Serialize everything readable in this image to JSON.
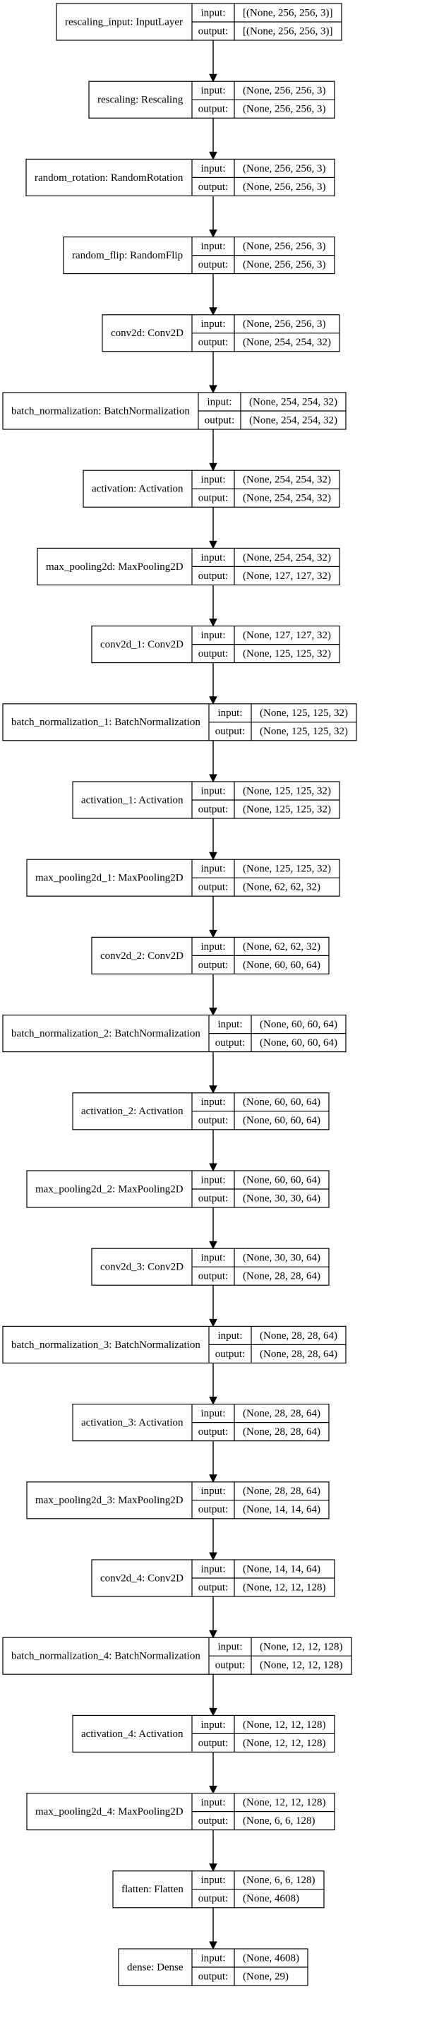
{
  "nodes": [
    {
      "label": "rescaling_input: InputLayer",
      "input": "[(None, 256, 256, 3)]",
      "output": "[(None, 256, 256, 3)]"
    },
    {
      "label": "rescaling: Rescaling",
      "input": "(None, 256, 256, 3)",
      "output": "(None, 256, 256, 3)"
    },
    {
      "label": "random_rotation: RandomRotation",
      "input": "(None, 256, 256, 3)",
      "output": "(None, 256, 256, 3)"
    },
    {
      "label": "random_flip: RandomFlip",
      "input": "(None, 256, 256, 3)",
      "output": "(None, 256, 256, 3)"
    },
    {
      "label": "conv2d: Conv2D",
      "input": "(None, 256, 256, 3)",
      "output": "(None, 254, 254, 32)"
    },
    {
      "label": "batch_normalization: BatchNormalization",
      "input": "(None, 254, 254, 32)",
      "output": "(None, 254, 254, 32)"
    },
    {
      "label": "activation: Activation",
      "input": "(None, 254, 254, 32)",
      "output": "(None, 254, 254, 32)"
    },
    {
      "label": "max_pooling2d: MaxPooling2D",
      "input": "(None, 254, 254, 32)",
      "output": "(None, 127, 127, 32)"
    },
    {
      "label": "conv2d_1: Conv2D",
      "input": "(None, 127, 127, 32)",
      "output": "(None, 125, 125, 32)"
    },
    {
      "label": "batch_normalization_1: BatchNormalization",
      "input": "(None, 125, 125, 32)",
      "output": "(None, 125, 125, 32)"
    },
    {
      "label": "activation_1: Activation",
      "input": "(None, 125, 125, 32)",
      "output": "(None, 125, 125, 32)"
    },
    {
      "label": "max_pooling2d_1: MaxPooling2D",
      "input": "(None, 125, 125, 32)",
      "output": "(None, 62, 62, 32)"
    },
    {
      "label": "conv2d_2: Conv2D",
      "input": "(None, 62, 62, 32)",
      "output": "(None, 60, 60, 64)"
    },
    {
      "label": "batch_normalization_2: BatchNormalization",
      "input": "(None, 60, 60, 64)",
      "output": "(None, 60, 60, 64)"
    },
    {
      "label": "activation_2: Activation",
      "input": "(None, 60, 60, 64)",
      "output": "(None, 60, 60, 64)"
    },
    {
      "label": "max_pooling2d_2: MaxPooling2D",
      "input": "(None, 60, 60, 64)",
      "output": "(None, 30, 30, 64)"
    },
    {
      "label": "conv2d_3: Conv2D",
      "input": "(None, 30, 30, 64)",
      "output": "(None, 28, 28, 64)"
    },
    {
      "label": "batch_normalization_3: BatchNormalization",
      "input": "(None, 28, 28, 64)",
      "output": "(None, 28, 28, 64)"
    },
    {
      "label": "activation_3: Activation",
      "input": "(None, 28, 28, 64)",
      "output": "(None, 28, 28, 64)"
    },
    {
      "label": "max_pooling2d_3: MaxPooling2D",
      "input": "(None, 28, 28, 64)",
      "output": "(None, 14, 14, 64)"
    },
    {
      "label": "conv2d_4: Conv2D",
      "input": "(None, 14, 14, 64)",
      "output": "(None, 12, 12, 128)"
    },
    {
      "label": "batch_normalization_4: BatchNormalization",
      "input": "(None, 12, 12, 128)",
      "output": "(None, 12, 12, 128)"
    },
    {
      "label": "activation_4: Activation",
      "input": "(None, 12, 12, 128)",
      "output": "(None, 12, 12, 128)"
    },
    {
      "label": "max_pooling2d_4: MaxPooling2D",
      "input": "(None, 12, 12, 128)",
      "output": "(None, 6, 6, 128)"
    },
    {
      "label": "flatten: Flatten",
      "input": "(None, 6, 6, 128)",
      "output": "(None, 4608)"
    },
    {
      "label": "dense: Dense",
      "input": "(None, 4608)",
      "output": "(None, 29)"
    }
  ],
  "port_labels": {
    "input": "input:",
    "output": "output:"
  }
}
